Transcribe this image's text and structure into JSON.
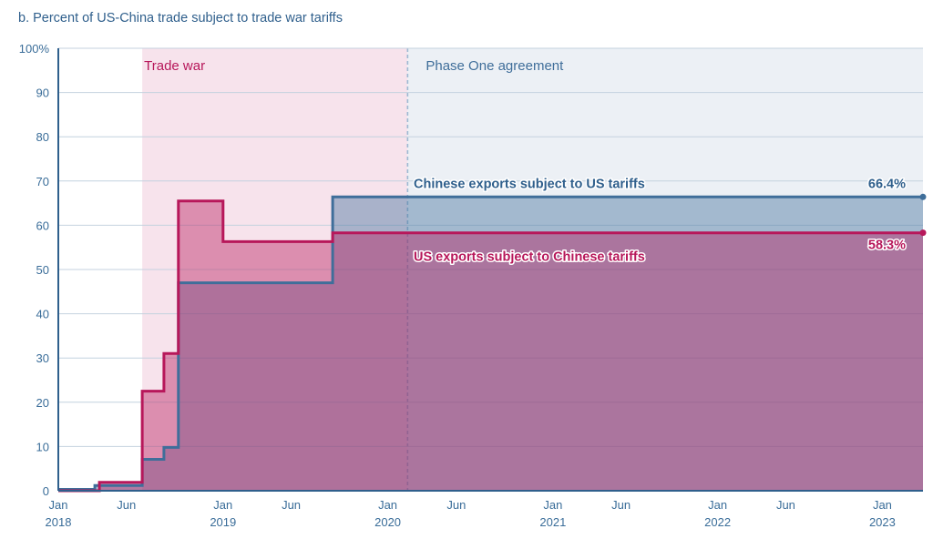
{
  "page_title": "b. Percent of US-China trade subject to trade war tariffs",
  "colors": {
    "us_tariff_line": "#3f6e9a",
    "china_tariff_line": "#b7175a",
    "trade_war_band": "#f7e3ec",
    "phase_one_band": "#ecf0f5",
    "axis_text": "#3a6d99"
  },
  "chart_data": {
    "type": "area",
    "title": "b. Percent of US-China trade subject to trade war tariffs",
    "xlabel": "",
    "ylabel": "",
    "xlim": [
      "2018-01-01",
      "2023-04-01"
    ],
    "ylim": [
      0,
      100
    ],
    "y_ticks": [
      0,
      10,
      20,
      30,
      40,
      50,
      60,
      70,
      80,
      90,
      100
    ],
    "y_tick_labels": [
      "0",
      "10",
      "20",
      "30",
      "40",
      "50",
      "60",
      "70",
      "80",
      "90",
      "100%"
    ],
    "x_ticks": [
      {
        "date": "2018-01-01",
        "label": "Jan",
        "year": "2018"
      },
      {
        "date": "2018-06-01",
        "label": "Jun",
        "year": ""
      },
      {
        "date": "2019-01-01",
        "label": "Jan",
        "year": "2019"
      },
      {
        "date": "2019-06-01",
        "label": "Jun",
        "year": ""
      },
      {
        "date": "2020-01-01",
        "label": "Jan",
        "year": "2020"
      },
      {
        "date": "2020-06-01",
        "label": "Jun",
        "year": ""
      },
      {
        "date": "2021-01-01",
        "label": "Jan",
        "year": "2021"
      },
      {
        "date": "2021-06-01",
        "label": "Jun",
        "year": ""
      },
      {
        "date": "2022-01-01",
        "label": "Jan",
        "year": "2022"
      },
      {
        "date": "2022-06-01",
        "label": "Jun",
        "year": ""
      },
      {
        "date": "2023-01-01",
        "label": "Jan",
        "year": "2023"
      }
    ],
    "grid": true,
    "regions": [
      {
        "label": "Trade war",
        "start": "2018-07-06",
        "end": "2020-02-14"
      },
      {
        "label": "Phase One agreement",
        "start": "2020-02-14",
        "end": "2023-04-01"
      }
    ],
    "series": [
      {
        "name": "Chinese exports subject to US tariffs",
        "step_points": [
          {
            "date": "2018-01-01",
            "value": 0.3
          },
          {
            "date": "2018-02-07",
            "value": 0.3
          },
          {
            "date": "2018-03-23",
            "value": 1.2
          },
          {
            "date": "2018-07-06",
            "value": 7.1
          },
          {
            "date": "2018-08-23",
            "value": 9.8
          },
          {
            "date": "2018-09-24",
            "value": 47.0
          },
          {
            "date": "2019-09-01",
            "value": 66.4
          },
          {
            "date": "2023-04-01",
            "value": 66.4
          }
        ],
        "end_label": "66.4%"
      },
      {
        "name": "US exports subject to Chinese tariffs",
        "step_points": [
          {
            "date": "2018-01-01",
            "value": 0.0
          },
          {
            "date": "2018-04-02",
            "value": 1.9
          },
          {
            "date": "2018-07-06",
            "value": 22.5
          },
          {
            "date": "2018-08-23",
            "value": 31.0
          },
          {
            "date": "2018-09-24",
            "value": 65.5
          },
          {
            "date": "2019-01-01",
            "value": 56.3
          },
          {
            "date": "2019-09-01",
            "value": 58.3
          },
          {
            "date": "2023-04-01",
            "value": 58.3
          }
        ],
        "end_label": "58.3%"
      }
    ]
  }
}
